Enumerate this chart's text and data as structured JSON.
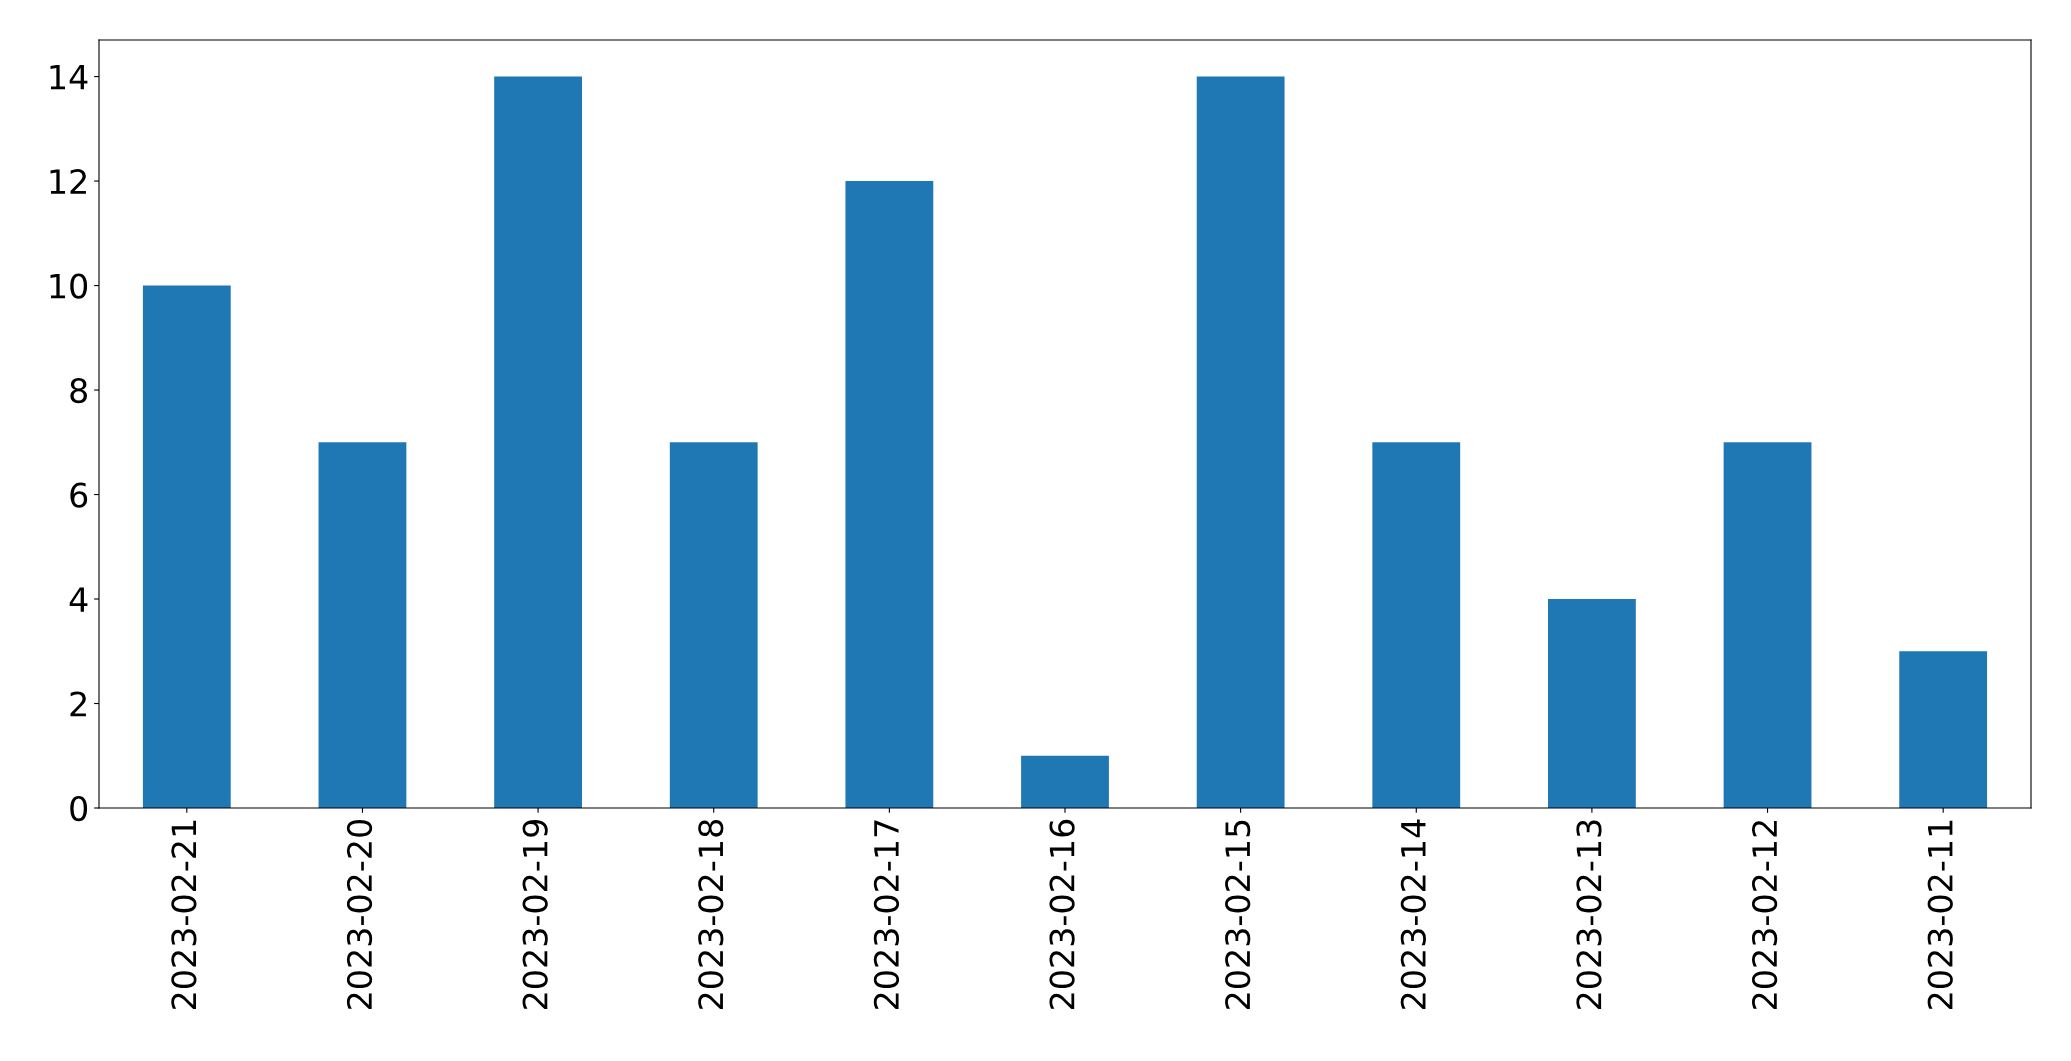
{
  "chart_data": {
    "type": "bar",
    "categories": [
      "2023-02-21",
      "2023-02-20",
      "2023-02-19",
      "2023-02-18",
      "2023-02-17",
      "2023-02-16",
      "2023-02-15",
      "2023-02-14",
      "2023-02-13",
      "2023-02-12",
      "2023-02-11"
    ],
    "values": [
      10,
      7,
      14,
      7,
      12,
      1,
      14,
      7,
      4,
      7,
      3
    ],
    "color": "#1f77b4",
    "ylim": [
      0,
      14.7
    ],
    "yticks": [
      0,
      2,
      4,
      6,
      8,
      10,
      12,
      14
    ],
    "grid": false
  }
}
